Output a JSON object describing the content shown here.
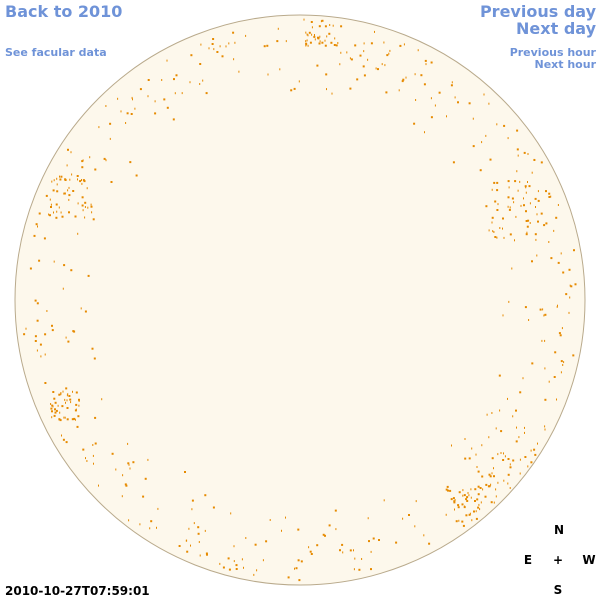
{
  "nav": {
    "back": "Back to 2010",
    "facular": "See facular data",
    "previous_day": "Previous day",
    "next_day": "Next day",
    "previous_hour": "Previous hour",
    "next_hour": "Next hour"
  },
  "timestamp": "2010-10-27T07:59:01",
  "compass": {
    "north": "N",
    "east": "E",
    "center": "+",
    "west": "W",
    "south": "S"
  }
}
